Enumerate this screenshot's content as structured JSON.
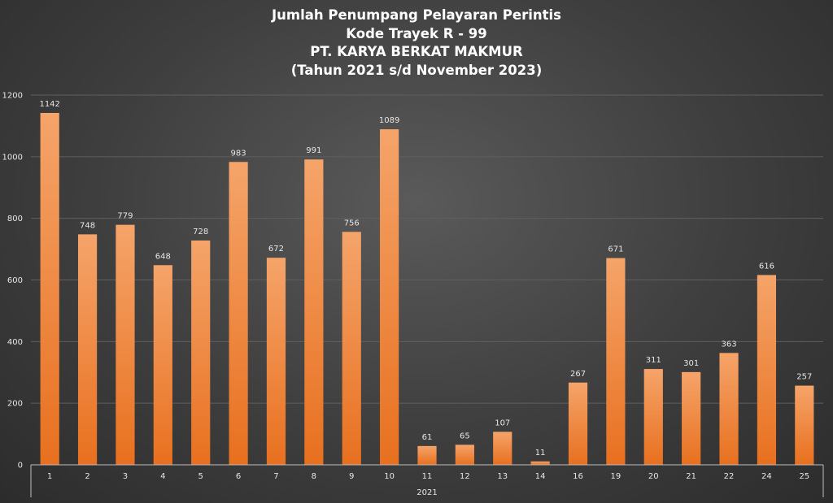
{
  "chart_data": {
    "type": "bar",
    "title_lines": [
      "Jumlah Penumpang Pelayaran Perintis",
      "Kode Trayek R - 99",
      "PT. KARYA BERKAT MAKMUR",
      "(Tahun 2021 s/d November 2023)"
    ],
    "categories": [
      "1",
      "2",
      "3",
      "4",
      "5",
      "6",
      "7",
      "8",
      "9",
      "10",
      "11",
      "12",
      "13",
      "14",
      "16",
      "19",
      "20",
      "21",
      "22",
      "24",
      "25"
    ],
    "group_label": "2021",
    "values": [
      1142,
      748,
      779,
      648,
      728,
      983,
      672,
      991,
      756,
      1089,
      61,
      65,
      107,
      11,
      267,
      671,
      311,
      301,
      363,
      616,
      257
    ],
    "ylim": [
      0,
      1200
    ],
    "yticks": [
      0,
      200,
      400,
      600,
      800,
      1000,
      1200
    ],
    "grid": true,
    "legend": "none",
    "xlabel": "",
    "ylabel": "",
    "colors": {
      "bar_light": "#f5a46a",
      "bar_dark": "#e8701f"
    }
  }
}
